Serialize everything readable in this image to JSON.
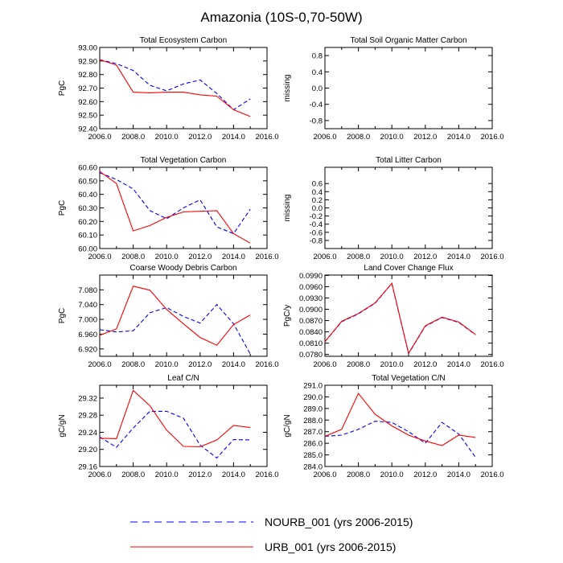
{
  "figure": {
    "title": "Amazonia (10S-0,70-50W)",
    "legend": [
      {
        "label": "NOURB_001 (yrs 2006-2015)",
        "color": "#0000ff",
        "dash": "dashed"
      },
      {
        "label": "URB_001 (yrs 2006-2015)",
        "color": "#ff0000",
        "dash": "solid"
      }
    ]
  },
  "chart_data": [
    {
      "type": "line",
      "title": "Total Ecosystem Carbon",
      "ylabel": "PgC",
      "xlabel": "",
      "xlim": [
        2006,
        2016
      ],
      "ylim": [
        92.4,
        93.0
      ],
      "xticks": [
        2006,
        2008,
        2010,
        2012,
        2014,
        2016
      ],
      "xtick_labels": [
        "2006.0",
        "2008.0",
        "2010.0",
        "2012.0",
        "2014.0",
        "2016.0"
      ],
      "yticks": [
        92.4,
        92.5,
        92.6,
        92.7,
        92.8,
        92.9,
        93.0
      ],
      "ytick_labels": [
        "92.40",
        "92.50",
        "92.60",
        "92.70",
        "92.80",
        "92.90",
        "93.00"
      ],
      "series": [
        {
          "name": "NOURB_001 (yrs 2006-2015)",
          "color": "#0000ff",
          "dash": true,
          "x": [
            2006,
            2007,
            2008,
            2009,
            2010,
            2011,
            2012,
            2013,
            2014,
            2015
          ],
          "values": [
            92.91,
            92.88,
            92.83,
            92.72,
            92.68,
            92.73,
            92.76,
            92.66,
            92.54,
            92.62
          ]
        },
        {
          "name": "URB_001 (yrs 2006-2015)",
          "color": "#ff0000",
          "dash": false,
          "x": [
            2006,
            2007,
            2008,
            2009,
            2010,
            2011,
            2012,
            2013,
            2014,
            2015
          ],
          "values": [
            92.91,
            92.87,
            92.67,
            92.665,
            92.67,
            92.67,
            92.65,
            92.64,
            92.54,
            92.49
          ]
        }
      ]
    },
    {
      "type": "line",
      "title": "Total Soil Organic Matter Carbon",
      "ylabel": "missing",
      "xlabel": "",
      "xlim": [
        2006,
        2016
      ],
      "ylim": [
        -1.0,
        1.0
      ],
      "xticks": [
        2006,
        2008,
        2010,
        2012,
        2014,
        2016
      ],
      "xtick_labels": [
        "2006.0",
        "2008.0",
        "2010.0",
        "2012.0",
        "2014.0",
        "2016.0"
      ],
      "yticks": [
        -0.8,
        -0.4,
        0.0,
        0.4,
        0.8
      ],
      "ytick_labels": [
        "-0.8",
        "-0.4",
        "0.0",
        "0.4",
        "0.8"
      ],
      "series": []
    },
    {
      "type": "line",
      "title": "Total Vegetation Carbon",
      "ylabel": "PgC",
      "xlabel": "",
      "xlim": [
        2006,
        2016
      ],
      "ylim": [
        60.0,
        60.6
      ],
      "xticks": [
        2006,
        2008,
        2010,
        2012,
        2014,
        2016
      ],
      "xtick_labels": [
        "2006.0",
        "2008.0",
        "2010.0",
        "2012.0",
        "2014.0",
        "2016.0"
      ],
      "yticks": [
        60.0,
        60.1,
        60.2,
        60.3,
        60.4,
        60.5,
        60.6
      ],
      "ytick_labels": [
        "60.00",
        "60.10",
        "60.20",
        "60.30",
        "60.40",
        "60.50",
        "60.60"
      ],
      "series": [
        {
          "name": "NOURB_001 (yrs 2006-2015)",
          "color": "#0000ff",
          "dash": true,
          "x": [
            2006,
            2007,
            2008,
            2009,
            2010,
            2011,
            2012,
            2013,
            2014,
            2015
          ],
          "values": [
            60.56,
            60.51,
            60.44,
            60.28,
            60.22,
            60.3,
            60.36,
            60.16,
            60.11,
            60.29
          ]
        },
        {
          "name": "URB_001 (yrs 2006-2015)",
          "color": "#ff0000",
          "dash": false,
          "x": [
            2006,
            2007,
            2008,
            2009,
            2010,
            2011,
            2012,
            2013,
            2014,
            2015
          ],
          "values": [
            60.57,
            60.48,
            60.13,
            60.17,
            60.23,
            60.27,
            60.275,
            60.28,
            60.11,
            60.04
          ]
        }
      ]
    },
    {
      "type": "line",
      "title": "Total Litter Carbon",
      "ylabel": "missing",
      "xlabel": "",
      "xlim": [
        2006,
        2016
      ],
      "ylim": [
        -1.0,
        1.0
      ],
      "xticks": [
        2006,
        2008,
        2010,
        2012,
        2014,
        2016
      ],
      "xtick_labels": [
        "2006.0",
        "2008.0",
        "2010.0",
        "2012.0",
        "2014.0",
        "2016.0"
      ],
      "yticks": [
        -0.8,
        -0.6,
        -0.4,
        -0.2,
        0.0,
        0.2,
        0.4,
        0.6
      ],
      "ytick_labels": [
        "-0.8",
        "-0.6",
        "-0.4",
        "-0.2",
        "0.0",
        "0.2",
        "0.4",
        "0.6"
      ],
      "series": []
    },
    {
      "type": "line",
      "title": "Coarse Woody Debris Carbon",
      "ylabel": "PgC",
      "xlabel": "",
      "xlim": [
        2006,
        2016
      ],
      "ylim": [
        6.9,
        7.12
      ],
      "xticks": [
        2006,
        2008,
        2010,
        2012,
        2014,
        2016
      ],
      "xtick_labels": [
        "2006.0",
        "2008.0",
        "2010.0",
        "2012.0",
        "2014.0",
        "2016.0"
      ],
      "yticks": [
        6.92,
        6.96,
        7.0,
        7.04,
        7.08
      ],
      "ytick_labels": [
        "6.920",
        "6.960",
        "7.000",
        "7.040",
        "7.080"
      ],
      "series": [
        {
          "name": "NOURB_001 (yrs 2006-2015)",
          "color": "#0000ff",
          "dash": true,
          "x": [
            2006,
            2007,
            2008,
            2009,
            2010,
            2011,
            2012,
            2013,
            2014,
            2015
          ],
          "values": [
            6.972,
            6.966,
            6.969,
            7.018,
            7.032,
            7.008,
            6.99,
            7.04,
            6.988,
            6.906
          ]
        },
        {
          "name": "URB_001 (yrs 2006-2015)",
          "color": "#ff0000",
          "dash": false,
          "x": [
            2006,
            2007,
            2008,
            2009,
            2010,
            2011,
            2012,
            2013,
            2014,
            2015
          ],
          "values": [
            6.957,
            6.974,
            7.09,
            7.079,
            7.027,
            6.988,
            6.951,
            6.93,
            6.986,
            7.012
          ]
        }
      ]
    },
    {
      "type": "line",
      "title": "Land Cover Change Flux",
      "ylabel": "PgC/y",
      "xlabel": "",
      "xlim": [
        2006,
        2016
      ],
      "ylim": [
        0.0775,
        0.0991
      ],
      "xticks": [
        2006,
        2008,
        2010,
        2012,
        2014,
        2016
      ],
      "xtick_labels": [
        "2006.0",
        "2008.0",
        "2010.0",
        "2012.0",
        "2014.0",
        "2016.0"
      ],
      "yticks": [
        0.078,
        0.081,
        0.084,
        0.087,
        0.09,
        0.093,
        0.096,
        0.099
      ],
      "ytick_labels": [
        "0.0780",
        "0.0810",
        "0.0840",
        "0.0870",
        "0.0900",
        "0.0930",
        "0.0960",
        "0.0990"
      ],
      "series": [
        {
          "name": "NOURB_001 (yrs 2006-2015)",
          "color": "#0000ff",
          "dash": true,
          "x": [
            2006,
            2007,
            2008,
            2009,
            2010,
            2011,
            2012,
            2013,
            2014,
            2015
          ],
          "values": [
            0.0814,
            0.0867,
            0.0888,
            0.0916,
            0.0969,
            0.0782,
            0.0855,
            0.0878,
            0.0865,
            0.0832
          ]
        },
        {
          "name": "URB_001 (yrs 2006-2015)",
          "color": "#ff0000",
          "dash": false,
          "x": [
            2006,
            2007,
            2008,
            2009,
            2010,
            2011,
            2012,
            2013,
            2014,
            2015
          ],
          "values": [
            0.0814,
            0.0868,
            0.0889,
            0.0917,
            0.0969,
            0.0783,
            0.0856,
            0.0879,
            0.0866,
            0.0833
          ]
        }
      ]
    },
    {
      "type": "line",
      "title": "Leaf C/N",
      "ylabel": "gC/gN",
      "xlabel": "",
      "xlim": [
        2006,
        2016
      ],
      "ylim": [
        29.16,
        29.35
      ],
      "xticks": [
        2006,
        2008,
        2010,
        2012,
        2014,
        2016
      ],
      "xtick_labels": [
        "2006.0",
        "2008.0",
        "2010.0",
        "2012.0",
        "2014.0",
        "2016.0"
      ],
      "yticks": [
        29.16,
        29.2,
        29.24,
        29.28,
        29.32
      ],
      "ytick_labels": [
        "29.16",
        "29.20",
        "29.24",
        "29.28",
        "29.32"
      ],
      "series": [
        {
          "name": "NOURB_001 (yrs 2006-2015)",
          "color": "#0000ff",
          "dash": true,
          "x": [
            2006,
            2007,
            2008,
            2009,
            2010,
            2011,
            2012,
            2013,
            2014,
            2015
          ],
          "values": [
            29.229,
            29.205,
            29.25,
            29.289,
            29.289,
            29.273,
            29.21,
            29.18,
            29.223,
            29.222
          ]
        },
        {
          "name": "URB_001 (yrs 2006-2015)",
          "color": "#ff0000",
          "dash": false,
          "x": [
            2006,
            2007,
            2008,
            2009,
            2010,
            2011,
            2012,
            2013,
            2014,
            2015
          ],
          "values": [
            29.226,
            29.225,
            29.338,
            29.302,
            29.245,
            29.207,
            29.206,
            29.222,
            29.256,
            29.251
          ]
        }
      ]
    },
    {
      "type": "line",
      "title": "Total Vegetation C/N",
      "ylabel": "gC/gN",
      "xlabel": "",
      "xlim": [
        2006,
        2016
      ],
      "ylim": [
        284.0,
        291.0
      ],
      "xticks": [
        2006,
        2008,
        2010,
        2012,
        2014,
        2016
      ],
      "xtick_labels": [
        "2006.0",
        "2008.0",
        "2010.0",
        "2012.0",
        "2014.0",
        "2016.0"
      ],
      "yticks": [
        284,
        285,
        286,
        287,
        288,
        289,
        290,
        291
      ],
      "ytick_labels": [
        "284.0",
        "285.0",
        "286.0",
        "287.0",
        "288.0",
        "289.0",
        "290.0",
        "291.0"
      ],
      "series": [
        {
          "name": "NOURB_001 (yrs 2006-2015)",
          "color": "#0000ff",
          "dash": true,
          "x": [
            2006,
            2007,
            2008,
            2009,
            2010,
            2011,
            2012,
            2013,
            2014,
            2015
          ],
          "values": [
            286.6,
            286.7,
            287.2,
            287.9,
            287.8,
            287.0,
            286.0,
            287.8,
            286.8,
            284.8
          ]
        },
        {
          "name": "URB_001 (yrs 2006-2015)",
          "color": "#ff0000",
          "dash": false,
          "x": [
            2006,
            2007,
            2008,
            2009,
            2010,
            2011,
            2012,
            2013,
            2014,
            2015
          ],
          "values": [
            286.6,
            287.2,
            290.3,
            288.5,
            287.5,
            286.7,
            286.2,
            285.8,
            286.7,
            286.5
          ]
        }
      ]
    }
  ]
}
